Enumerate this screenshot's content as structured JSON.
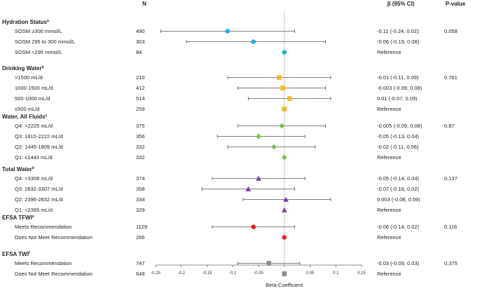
{
  "chart_data": {
    "type": "forest",
    "title": "",
    "xlabel": "Beta-Coefficient",
    "column_headers": {
      "n": "N",
      "ci": "β (95% CI)",
      "p": "P-value"
    },
    "xlim": [
      -0.25,
      0.15
    ],
    "xticks": [
      "-0.25",
      "-0.2",
      "-0.15",
      "-0.1",
      "-0.05",
      "0",
      "0.05",
      "0.1",
      "0.15"
    ],
    "xtick_values": [
      -0.25,
      -0.2,
      -0.15,
      -0.1,
      -0.05,
      0,
      0.05,
      0.1,
      0.15
    ],
    "reference_line": 0,
    "groups": [
      {
        "title": "Hydration Status",
        "sup": "a",
        "color": "#1ab0ea",
        "marker": "circle",
        "rows": [
          {
            "label": "SOSM ≥300 mmol/L",
            "n": "490",
            "beta": -0.11,
            "lo": -0.24,
            "hi": 0.02,
            "ci_text": "-0.11 (-0.24, 0.02)",
            "p": "0.058"
          },
          {
            "label": "SOSM 295 to 300 mmol/L",
            "n": "303",
            "beta": -0.06,
            "lo": -0.19,
            "hi": 0.08,
            "ci_text": "-0.06 (-0.19, 0.08)",
            "p": ""
          },
          {
            "label": "SOSM <295 mmol/L",
            "n": "84",
            "beta": 0,
            "lo": null,
            "hi": null,
            "ci_text": "Reference",
            "p": ""
          }
        ]
      },
      {
        "title": "Drinking Water",
        "sup": "b",
        "color": "#f5b820",
        "marker": "square",
        "rows": [
          {
            "label": ">1500 mL/d",
            "n": "210",
            "beta": -0.01,
            "lo": -0.11,
            "hi": 0.09,
            "ci_text": "-0.01 (-0.11, 0.09)",
            "p": "0.761"
          },
          {
            "label": "1000-1500 mL/d",
            "n": "412",
            "beta": -0.003,
            "lo": -0.09,
            "hi": 0.08,
            "ci_text": "-0.003 (-0.09, 0.08)",
            "p": ""
          },
          {
            "label": " 500-1000 mL/d",
            "n": "514",
            "beta": 0.01,
            "lo": -0.07,
            "hi": 0.09,
            "ci_text": "0.01 (-0.07, 0.09)",
            "p": ""
          },
          {
            "label": "≤500 mL/d",
            "n": "259",
            "beta": 0,
            "lo": null,
            "hi": null,
            "ci_text": "Reference",
            "p": ""
          }
        ]
      },
      {
        "title": "Water, All Fluids",
        "sup": "c",
        "color": "#7cbf4b",
        "marker": "diamond",
        "rows": [
          {
            "label": "Q4: >2225 mL/d",
            "n": "375",
            "beta": -0.005,
            "lo": -0.09,
            "hi": 0.08,
            "ci_text": "-0.005 (-0.09, 0.08)",
            "p": "0.87"
          },
          {
            "label": "Q3: 1810-2222 mL/d",
            "n": "356",
            "beta": -0.05,
            "lo": -0.13,
            "hi": 0.04,
            "ci_text": "-0.05 (-0.13, 0.04)",
            "p": ""
          },
          {
            "label": "Q2: 1445-1809 mL/d",
            "n": "332",
            "beta": -0.02,
            "lo": -0.11,
            "hi": 0.06,
            "ci_text": "-0.02 (-0.11, 0.06)",
            "p": ""
          },
          {
            "label": "Q1: ≤1443 mL/d",
            "n": "332",
            "beta": 0,
            "lo": null,
            "hi": null,
            "ci_text": "Reference",
            "p": ""
          }
        ]
      },
      {
        "title": "Total Water",
        "sup": "d",
        "color": "#7b3fb0",
        "marker": "triangle",
        "rows": [
          {
            "label": "Q4: >3308 mL/d",
            "n": "374",
            "beta": -0.05,
            "lo": -0.14,
            "hi": 0.04,
            "ci_text": "-0.05 (-0.14, 0.04)",
            "p": "0.137"
          },
          {
            "label": "Q3: 2832-3307 mL/d",
            "n": "358",
            "beta": -0.07,
            "lo": -0.16,
            "hi": 0.02,
            "ci_text": "-0.07 (-0.16, 0.02)",
            "p": ""
          },
          {
            "label": "Q2: 2396-2832 mL/d",
            "n": "334",
            "beta": 0.003,
            "lo": -0.08,
            "hi": 0.09,
            "ci_text": "0.003 (-0.08, 0.09)",
            "p": ""
          },
          {
            "label": "Q1: <2395 mL/d",
            "n": "329",
            "beta": 0,
            "lo": null,
            "hi": null,
            "ci_text": "Reference",
            "p": ""
          }
        ]
      },
      {
        "title": "EFSA TFWI",
        "sup": "e",
        "color": "#e3211c",
        "marker": "circle",
        "rows": [
          {
            "label": "Meets Recommendation",
            "n": "1129",
            "beta": -0.06,
            "lo": -0.14,
            "hi": 0.02,
            "ci_text": "-0.06 (-0.14, 0.02)",
            "p": "0.116"
          },
          {
            "label": "Does Not Meet Recommendation",
            "n": "266",
            "beta": 0,
            "lo": null,
            "hi": null,
            "ci_text": "Reference",
            "p": ""
          }
        ]
      },
      {
        "title": "EFSA TWI",
        "sup": "f",
        "color": "#8c8c8c",
        "marker": "square",
        "rows": [
          {
            "label": "Meets Recommendation",
            "n": "747",
            "beta": -0.03,
            "lo": -0.09,
            "hi": 0.03,
            "ci_text": "-0.03 (-0.09, 0.03)",
            "p": "0.375"
          },
          {
            "label": "Does Not Meet Recommendation",
            "n": "648",
            "beta": 0,
            "lo": null,
            "hi": null,
            "ci_text": "Reference",
            "p": ""
          }
        ]
      }
    ]
  }
}
